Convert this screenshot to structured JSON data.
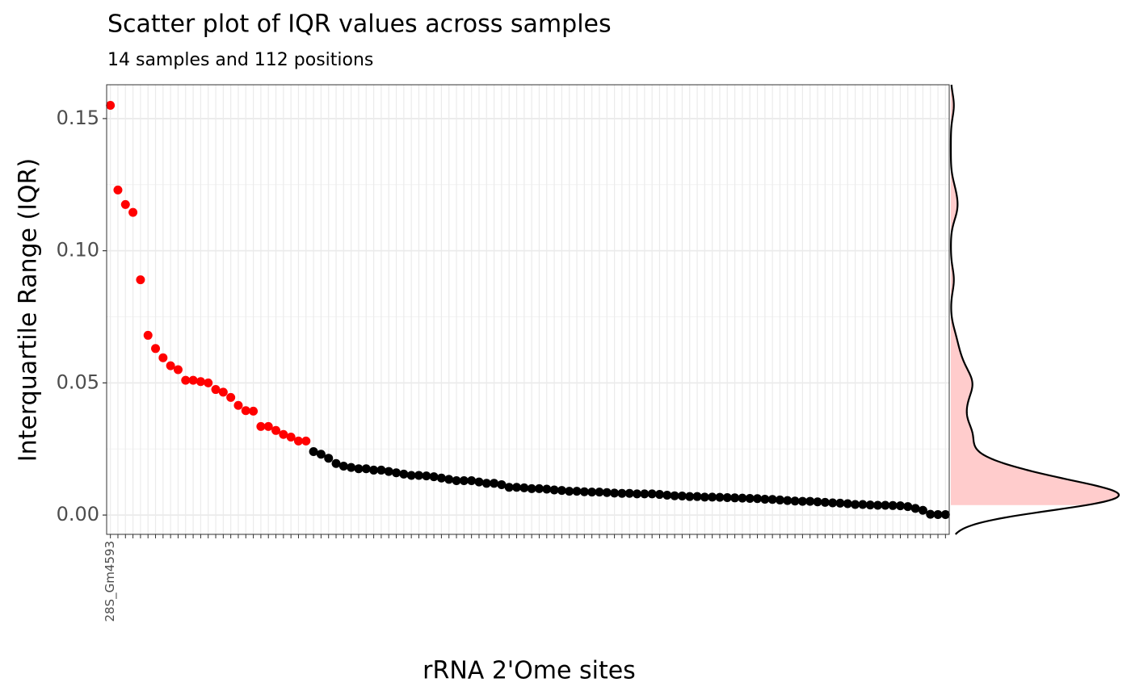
{
  "chart_data": {
    "type": "scatter",
    "title": "Scatter plot of IQR values across samples",
    "subtitle": "14 samples and 112 positions",
    "x_label": "rRNA 2'Ome sites",
    "y_label": "Interquartile Range (IQR)",
    "categories": [
      "28S_Gm4593",
      null,
      null,
      null,
      null,
      null,
      null,
      null,
      null,
      null,
      null,
      null,
      null,
      null,
      null,
      null,
      null,
      null,
      null,
      null,
      null,
      null,
      null,
      null,
      null,
      null,
      null,
      null,
      null,
      null,
      null,
      null,
      null,
      null,
      null,
      null,
      null,
      null,
      null,
      null,
      null,
      null,
      null,
      null,
      null,
      null,
      null,
      null,
      null,
      null,
      null,
      null,
      null,
      null,
      null,
      null,
      null,
      null,
      null,
      null,
      null,
      null,
      null,
      null,
      null,
      null,
      null,
      null,
      null,
      null,
      null,
      null,
      null,
      null,
      null,
      null,
      null,
      null,
      null,
      null,
      null,
      null,
      null,
      null,
      null,
      null,
      null,
      null,
      null,
      null,
      null,
      null,
      null,
      null,
      null,
      null,
      null,
      null,
      null,
      null,
      null,
      null,
      null,
      null,
      null,
      null,
      null,
      null,
      null,
      null,
      null,
      null
    ],
    "values": [
      0.155,
      0.123,
      0.1175,
      0.1145,
      0.089,
      0.068,
      0.063,
      0.0595,
      0.0565,
      0.055,
      0.051,
      0.051,
      0.0505,
      0.05,
      0.0475,
      0.0465,
      0.0445,
      0.0415,
      0.0395,
      0.0393,
      0.0335,
      0.0335,
      0.032,
      0.0305,
      0.0295,
      0.028,
      0.028,
      0.024,
      0.023,
      0.0215,
      0.0195,
      0.0185,
      0.018,
      0.0175,
      0.0175,
      0.017,
      0.017,
      0.0165,
      0.016,
      0.0155,
      0.015,
      0.015,
      0.0148,
      0.0145,
      0.014,
      0.0135,
      0.013,
      0.013,
      0.013,
      0.0125,
      0.012,
      0.012,
      0.0115,
      0.0105,
      0.0105,
      0.0103,
      0.01,
      0.01,
      0.0098,
      0.0095,
      0.0093,
      0.009,
      0.009,
      0.0088,
      0.0087,
      0.0087,
      0.0085,
      0.0083,
      0.0082,
      0.0082,
      0.008,
      0.008,
      0.008,
      0.0078,
      0.0075,
      0.0073,
      0.0072,
      0.007,
      0.007,
      0.0068,
      0.0068,
      0.0067,
      0.0066,
      0.0065,
      0.0064,
      0.0063,
      0.0062,
      0.006,
      0.0059,
      0.0057,
      0.0055,
      0.0053,
      0.0052,
      0.0052,
      0.005,
      0.0048,
      0.0046,
      0.0045,
      0.0043,
      0.004,
      0.004,
      0.0038,
      0.0037,
      0.0037,
      0.0036,
      0.0035,
      0.0032,
      0.0025,
      0.0018,
      0.0003,
      0.0002,
      0.0002
    ],
    "colors": [
      "#ff0000",
      "#ff0000",
      "#ff0000",
      "#ff0000",
      "#ff0000",
      "#ff0000",
      "#ff0000",
      "#ff0000",
      "#ff0000",
      "#ff0000",
      "#ff0000",
      "#ff0000",
      "#ff0000",
      "#ff0000",
      "#ff0000",
      "#ff0000",
      "#ff0000",
      "#ff0000",
      "#ff0000",
      "#ff0000",
      "#ff0000",
      "#ff0000",
      "#ff0000",
      "#ff0000",
      "#ff0000",
      "#ff0000",
      "#ff0000",
      "#000000",
      "#000000",
      "#000000",
      "#000000",
      "#000000",
      "#000000",
      "#000000",
      "#000000",
      "#000000",
      "#000000",
      "#000000",
      "#000000",
      "#000000",
      "#000000",
      "#000000",
      "#000000",
      "#000000",
      "#000000",
      "#000000",
      "#000000",
      "#000000",
      "#000000",
      "#000000",
      "#000000",
      "#000000",
      "#000000",
      "#000000",
      "#000000",
      "#000000",
      "#000000",
      "#000000",
      "#000000",
      "#000000",
      "#000000",
      "#000000",
      "#000000",
      "#000000",
      "#000000",
      "#000000",
      "#000000",
      "#000000",
      "#000000",
      "#000000",
      "#000000",
      "#000000",
      "#000000",
      "#000000",
      "#000000",
      "#000000",
      "#000000",
      "#000000",
      "#000000",
      "#000000",
      "#000000",
      "#000000",
      "#000000",
      "#000000",
      "#000000",
      "#000000",
      "#000000",
      "#000000",
      "#000000",
      "#000000",
      "#000000",
      "#000000",
      "#000000",
      "#000000",
      "#000000",
      "#000000",
      "#000000",
      "#000000",
      "#000000",
      "#000000",
      "#000000",
      "#000000",
      "#000000",
      "#000000"
    ],
    "density_fill": "#ffcccc",
    "ylim": [
      -0.0073,
      0.1628
    ],
    "yticks": [
      {
        "value": 0,
        "label": "0.00"
      },
      {
        "value": 0.05,
        "label": "0.05"
      },
      {
        "value": 0.1,
        "label": "0.10"
      },
      {
        "value": 0.15,
        "label": "0.15"
      }
    ],
    "grid": true
  }
}
